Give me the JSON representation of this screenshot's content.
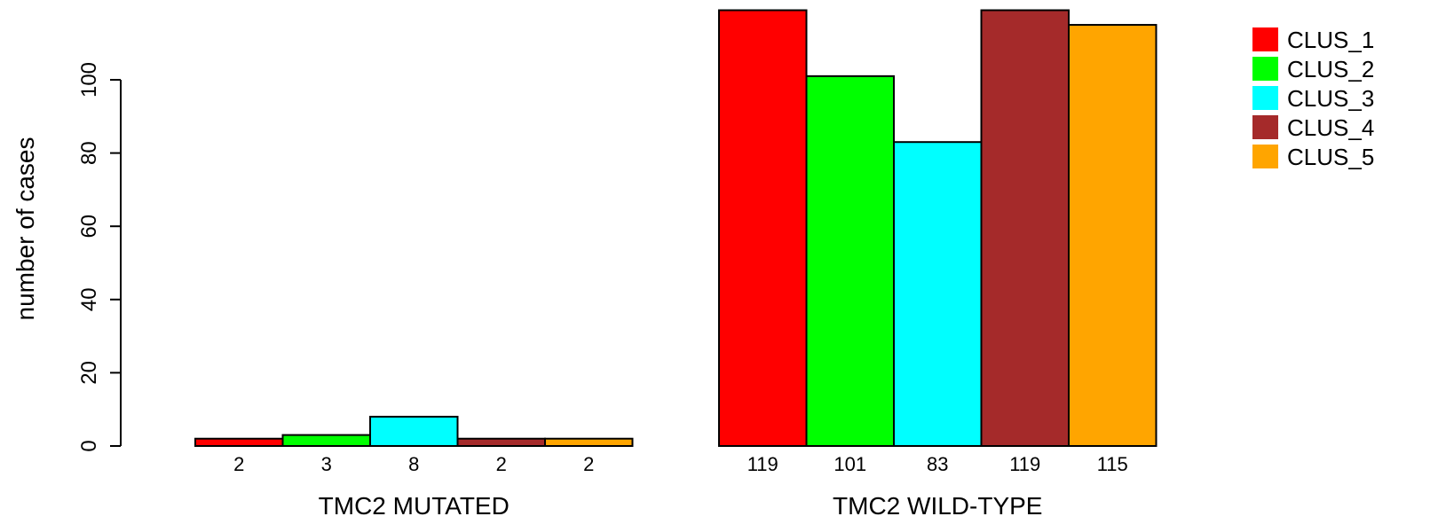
{
  "chart_data": {
    "type": "bar",
    "ylabel": "number of cases",
    "ylim": [
      0,
      120
    ],
    "yticks": [
      0,
      20,
      40,
      60,
      80,
      100
    ],
    "grid": false,
    "legend_position": "top-right",
    "series": [
      {
        "name": "CLUS_1",
        "color": "#FF0000"
      },
      {
        "name": "CLUS_2",
        "color": "#00FF00"
      },
      {
        "name": "CLUS_3",
        "color": "#00FFFF"
      },
      {
        "name": "CLUS_4",
        "color": "#A52A2A"
      },
      {
        "name": "CLUS_5",
        "color": "#FFA500"
      }
    ],
    "groups": [
      {
        "label": "TMC2 MUTATED",
        "values": [
          2,
          3,
          8,
          2,
          2
        ]
      },
      {
        "label": "TMC2 WILD-TYPE",
        "values": [
          119,
          101,
          83,
          119,
          115
        ]
      }
    ]
  }
}
